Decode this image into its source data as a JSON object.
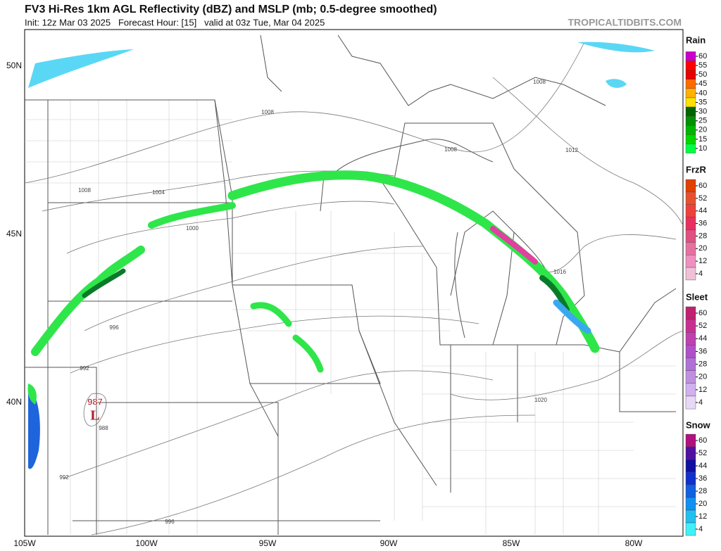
{
  "header": {
    "title": "FV3 Hi-Res 1km AGL Reflectivity (dBZ) and MSLP (mb; 0.5-degree smoothed)",
    "subtitle": "Init: 12z Mar 03 2025   Forecast Hour: [15]   valid at 03z Tue, Mar 04 2025",
    "site": "TROPICALTIDBITS.COM"
  },
  "map": {
    "lat_labels": [
      "50N",
      "45N",
      "40N"
    ],
    "lon_labels": [
      "105W",
      "100W",
      "95W",
      "90W",
      "85W",
      "80W"
    ],
    "isobar_labels": [
      "1008",
      "1008",
      "1008",
      "1012",
      "1008",
      "1004",
      "1000",
      "996",
      "992",
      "988",
      "992",
      "996",
      "1016",
      "1020"
    ],
    "low": {
      "pressure": "987",
      "symbol": "L"
    }
  },
  "legend": [
    {
      "title": "Rain",
      "ticks": [
        "60",
        "55",
        "50",
        "45",
        "40",
        "35",
        "30",
        "25",
        "20",
        "15",
        "10"
      ],
      "colors": [
        "#c800c8",
        "#ff0000",
        "#e60000",
        "#ff6a00",
        "#ffb000",
        "#ffe000",
        "#006400",
        "#009000",
        "#00b400",
        "#00d800",
        "#00ff40"
      ]
    },
    {
      "title": "FrzR",
      "ticks": [
        "60",
        "52",
        "44",
        "36",
        "28",
        "20",
        "12",
        "4"
      ],
      "colors": [
        "#e04000",
        "#e85030",
        "#f0403c",
        "#e83060",
        "#e05080",
        "#e870a0",
        "#f090c0",
        "#f0c0d8"
      ]
    },
    {
      "title": "Sleet",
      "ticks": [
        "60",
        "52",
        "44",
        "36",
        "28",
        "20",
        "12",
        "4"
      ],
      "colors": [
        "#c02070",
        "#c83090",
        "#c040b0",
        "#b050c8",
        "#b070d8",
        "#c090e0",
        "#d0b0ee",
        "#e8d8f8"
      ]
    },
    {
      "title": "Snow",
      "ticks": [
        "60",
        "52",
        "44",
        "36",
        "28",
        "20",
        "12",
        "4"
      ],
      "colors": [
        "#b01080",
        "#5010a0",
        "#1010a0",
        "#1030d0",
        "#1060e0",
        "#1090f0",
        "#20c0f0",
        "#40f0f8"
      ]
    }
  ]
}
